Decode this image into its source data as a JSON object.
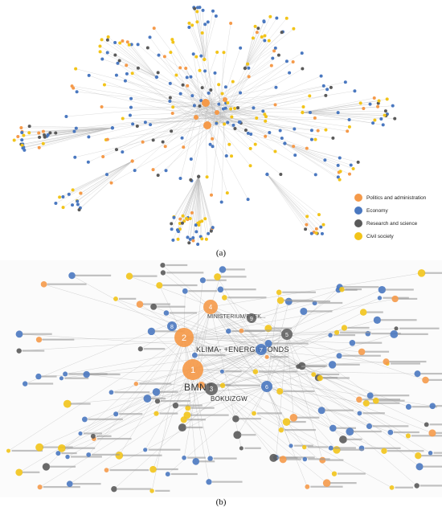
{
  "panel_a": {
    "caption": "(a)",
    "legend": [
      {
        "label": "Politics and administration",
        "color": "#f59a4a"
      },
      {
        "label": "Economy",
        "color": "#4a78c0"
      },
      {
        "label": "Research and science",
        "color": "#5a5a5a"
      },
      {
        "label": "Civil society",
        "color": "#f2c419"
      }
    ]
  },
  "panel_b": {
    "caption": "(b)",
    "hubs": [
      {
        "number": "1",
        "label": "BMNT",
        "category": "politics"
      },
      {
        "number": "2",
        "label": "KLIMA- +ENERGIEFONDS",
        "category": "politics"
      },
      {
        "number": "3",
        "label": "BOKU/ZGW",
        "category": "science"
      },
      {
        "number": "4",
        "label": "",
        "category": "politics"
      },
      {
        "number": "5",
        "label": "",
        "category": "science"
      },
      {
        "number": "6",
        "label": "",
        "category": "economy"
      },
      {
        "number": "7",
        "label": "",
        "category": "economy"
      },
      {
        "number": "8",
        "label": "",
        "category": "economy"
      },
      {
        "number": "9",
        "label": "",
        "category": "science"
      }
    ],
    "upper_label": "MINISTERIUM/EXEK..."
  }
}
